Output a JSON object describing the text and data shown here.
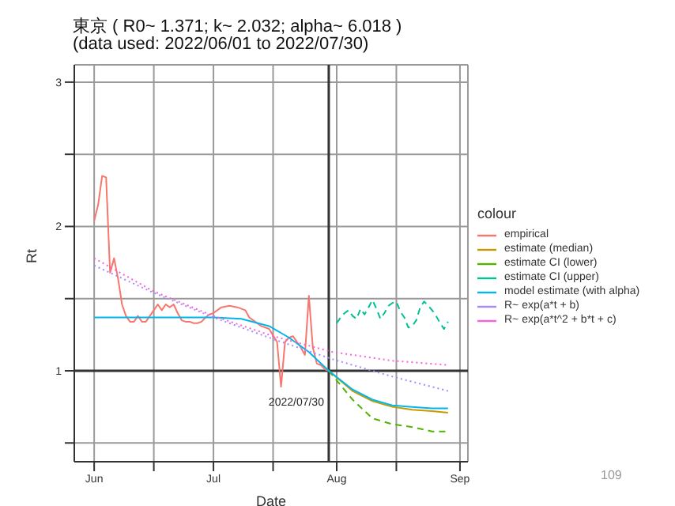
{
  "chart_data": {
    "type": "line",
    "title": "東京 ( R0~ 1.371; k~ 2.032; alpha~ 6.018 )",
    "subtitle": "(data used: 2022/06/01 to 2022/07/30)",
    "xlabel": "Date",
    "ylabel": "Rt",
    "legend_title": "colour",
    "legend": "right",
    "grid": true,
    "marker": "none",
    "xlim": [
      "2022-05-27",
      "2022-09-03"
    ],
    "xticks": [
      {
        "value": "2022-06-01",
        "label": "Jun"
      },
      {
        "value": "2022-06-16",
        "label": null
      },
      {
        "value": "2022-07-01",
        "label": "Jul"
      },
      {
        "value": "2022-07-16",
        "label": null
      },
      {
        "value": "2022-08-01",
        "label": "Aug"
      },
      {
        "value": "2022-08-16",
        "label": null
      },
      {
        "value": "2022-09-01",
        "label": "Sep"
      }
    ],
    "ylim": [
      0.37,
      3.12
    ],
    "yticks": [
      {
        "value": 0.5,
        "label": null
      },
      1,
      {
        "value": 1.5,
        "label": null
      },
      2,
      {
        "value": 2.5,
        "label": null
      },
      3
    ],
    "ref_lines": [
      {
        "axis": "x",
        "value": "2022-07-30",
        "color": "#333333"
      },
      {
        "axis": "y",
        "value": 1,
        "color": "#333333"
      }
    ],
    "annotations": [
      {
        "text": "2022/07/30",
        "x": "2022-07-30",
        "y": 1
      },
      "109"
    ],
    "series": [
      {
        "name": "empirical",
        "color": "#f8766d",
        "line_style": "solid",
        "x": [
          "2022-06-01",
          "2022-06-02",
          "2022-06-03",
          "2022-06-04",
          "2022-06-05",
          "2022-06-06",
          "2022-06-07",
          "2022-06-08",
          "2022-06-09",
          "2022-06-10",
          "2022-06-11",
          "2022-06-12",
          "2022-06-13",
          "2022-06-14",
          "2022-06-15",
          "2022-06-16",
          "2022-06-17",
          "2022-06-18",
          "2022-06-19",
          "2022-06-20",
          "2022-06-21",
          "2022-06-22",
          "2022-06-23",
          "2022-06-24",
          "2022-06-25",
          "2022-06-26",
          "2022-06-27",
          "2022-06-28",
          "2022-06-29",
          "2022-06-30",
          "2022-07-01",
          "2022-07-03",
          "2022-07-05",
          "2022-07-07",
          "2022-07-09",
          "2022-07-10",
          "2022-07-11",
          "2022-07-13",
          "2022-07-15",
          "2022-07-17",
          "2022-07-18",
          "2022-07-19",
          "2022-07-20",
          "2022-07-21",
          "2022-07-22",
          "2022-07-23",
          "2022-07-24",
          "2022-07-25",
          "2022-07-26",
          "2022-07-27",
          "2022-07-28",
          "2022-07-29",
          "2022-07-30"
        ],
        "values": [
          2.04,
          2.15,
          2.35,
          2.34,
          1.68,
          1.78,
          1.64,
          1.46,
          1.38,
          1.34,
          1.34,
          1.38,
          1.34,
          1.34,
          1.38,
          1.42,
          1.46,
          1.42,
          1.46,
          1.44,
          1.46,
          1.4,
          1.35,
          1.34,
          1.34,
          1.33,
          1.33,
          1.34,
          1.37,
          1.39,
          1.4,
          1.44,
          1.45,
          1.44,
          1.42,
          1.37,
          1.35,
          1.31,
          1.29,
          1.2,
          0.89,
          1.2,
          1.23,
          1.24,
          1.2,
          1.16,
          1.11,
          1.52,
          1.16,
          1.05,
          1.04,
          1.01,
          1.0
        ]
      },
      {
        "name": "estimate (median)",
        "color": "#c49a00",
        "line_style": "solid",
        "x": [
          "2022-07-30",
          "2022-08-05",
          "2022-08-10",
          "2022-08-15",
          "2022-08-20",
          "2022-08-25",
          "2022-08-29"
        ],
        "values": [
          1.0,
          0.86,
          0.79,
          0.75,
          0.73,
          0.72,
          0.71
        ]
      },
      {
        "name": "estimate CI (lower)",
        "color": "#53b400",
        "line_style": "dashed",
        "x": [
          "2022-07-30",
          "2022-08-05",
          "2022-08-10",
          "2022-08-15",
          "2022-08-20",
          "2022-08-25",
          "2022-08-29"
        ],
        "values": [
          1.0,
          0.8,
          0.67,
          0.63,
          0.61,
          0.58,
          0.58
        ]
      },
      {
        "name": "estimate CI (upper)",
        "color": "#00c094",
        "line_style": "dashed",
        "x": [
          "2022-08-01",
          "2022-08-02",
          "2022-08-03",
          "2022-08-04",
          "2022-08-05",
          "2022-08-06",
          "2022-08-07",
          "2022-08-08",
          "2022-08-09",
          "2022-08-10",
          "2022-08-11",
          "2022-08-12",
          "2022-08-13",
          "2022-08-14",
          "2022-08-15",
          "2022-08-16",
          "2022-08-17",
          "2022-08-18",
          "2022-08-19",
          "2022-08-20",
          "2022-08-21",
          "2022-08-22",
          "2022-08-23",
          "2022-08-24",
          "2022-08-25",
          "2022-08-26",
          "2022-08-27",
          "2022-08-28",
          "2022-08-29"
        ],
        "values": [
          1.33,
          1.37,
          1.4,
          1.42,
          1.38,
          1.36,
          1.43,
          1.39,
          1.44,
          1.49,
          1.43,
          1.36,
          1.4,
          1.45,
          1.47,
          1.48,
          1.41,
          1.37,
          1.3,
          1.31,
          1.35,
          1.44,
          1.48,
          1.45,
          1.42,
          1.38,
          1.33,
          1.29,
          1.34
        ]
      },
      {
        "name": "model estimate (with alpha)",
        "color": "#00b6eb",
        "line_style": "solid",
        "x": [
          "2022-06-01",
          "2022-07-01",
          "2022-07-08",
          "2022-07-15",
          "2022-07-20",
          "2022-07-25",
          "2022-07-30",
          "2022-08-05",
          "2022-08-10",
          "2022-08-15",
          "2022-08-20",
          "2022-08-25",
          "2022-08-29"
        ],
        "values": [
          1.37,
          1.37,
          1.36,
          1.31,
          1.23,
          1.13,
          1.0,
          0.87,
          0.8,
          0.76,
          0.75,
          0.74,
          0.74
        ]
      },
      {
        "name": "R~ exp(a*t + b)",
        "color": "#a58aff",
        "line_style": "dotted",
        "x": [
          "2022-06-01",
          "2022-06-16",
          "2022-07-01",
          "2022-07-16",
          "2022-07-31",
          "2022-08-15",
          "2022-08-29"
        ],
        "values": [
          1.73,
          1.54,
          1.37,
          1.22,
          1.08,
          0.96,
          0.86
        ]
      },
      {
        "name": "R~ exp(a*t^2 + b*t + c)",
        "color": "#fb61d7",
        "line_style": "dotted",
        "x": [
          "2022-06-01",
          "2022-06-16",
          "2022-07-01",
          "2022-07-16",
          "2022-07-31",
          "2022-08-15",
          "2022-08-29"
        ],
        "values": [
          1.78,
          1.55,
          1.38,
          1.24,
          1.13,
          1.07,
          1.04
        ]
      }
    ]
  }
}
